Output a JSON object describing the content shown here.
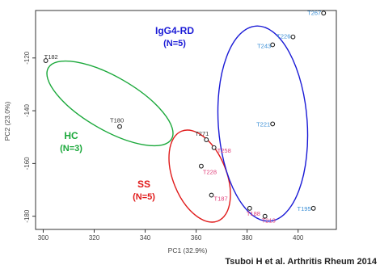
{
  "chart_data": {
    "type": "scatter",
    "title": "",
    "xlabel": "PC1 (32.9%)",
    "ylabel": "PC2 (23.0%)",
    "xlim": [
      297,
      415
    ],
    "ylim": [
      -185,
      -102
    ],
    "xticks": [
      300,
      320,
      340,
      360,
      380,
      400
    ],
    "yticks": [
      -180,
      -160,
      -140,
      -120
    ],
    "grid": false,
    "points": [
      {
        "label": "T182",
        "x": 301,
        "y": -121,
        "color": "#333333"
      },
      {
        "label": "T180",
        "x": 330,
        "y": -146,
        "color": "#333333"
      },
      {
        "label": "T271",
        "x": 364,
        "y": -151,
        "color": "#333333"
      },
      {
        "label": "T258",
        "x": 367,
        "y": -154,
        "color": "#e0407a"
      },
      {
        "label": "T228",
        "x": 362,
        "y": -161,
        "color": "#e0407a"
      },
      {
        "label": "T187",
        "x": 366,
        "y": -172,
        "color": "#e0407a"
      },
      {
        "label": "T188",
        "x": 381,
        "y": -177,
        "color": "#e0407a"
      },
      {
        "label": "T213",
        "x": 387,
        "y": -180,
        "color": "#e0407a"
      },
      {
        "label": "T267",
        "x": 410,
        "y": -103,
        "color": "#3b8fd6"
      },
      {
        "label": "T226",
        "x": 398,
        "y": -112,
        "color": "#3b8fd6"
      },
      {
        "label": "T243",
        "x": 390,
        "y": -115,
        "color": "#3b8fd6"
      },
      {
        "label": "T221",
        "x": 390,
        "y": -145,
        "color": "#3b8fd6"
      },
      {
        "label": "T195",
        "x": 406,
        "y": -177,
        "color": "#3b8fd6"
      }
    ],
    "groups": [
      {
        "name": "IgG4-RD",
        "n": "(N=5)",
        "color": "#1a1ad6"
      },
      {
        "name": "HC",
        "n": "(N=3)",
        "color": "#1aa83a"
      },
      {
        "name": "SS",
        "n": "(N=5)",
        "color": "#e01a1a"
      }
    ]
  },
  "citation": "Tsuboi H et al. Arthritis Rheum 2014"
}
